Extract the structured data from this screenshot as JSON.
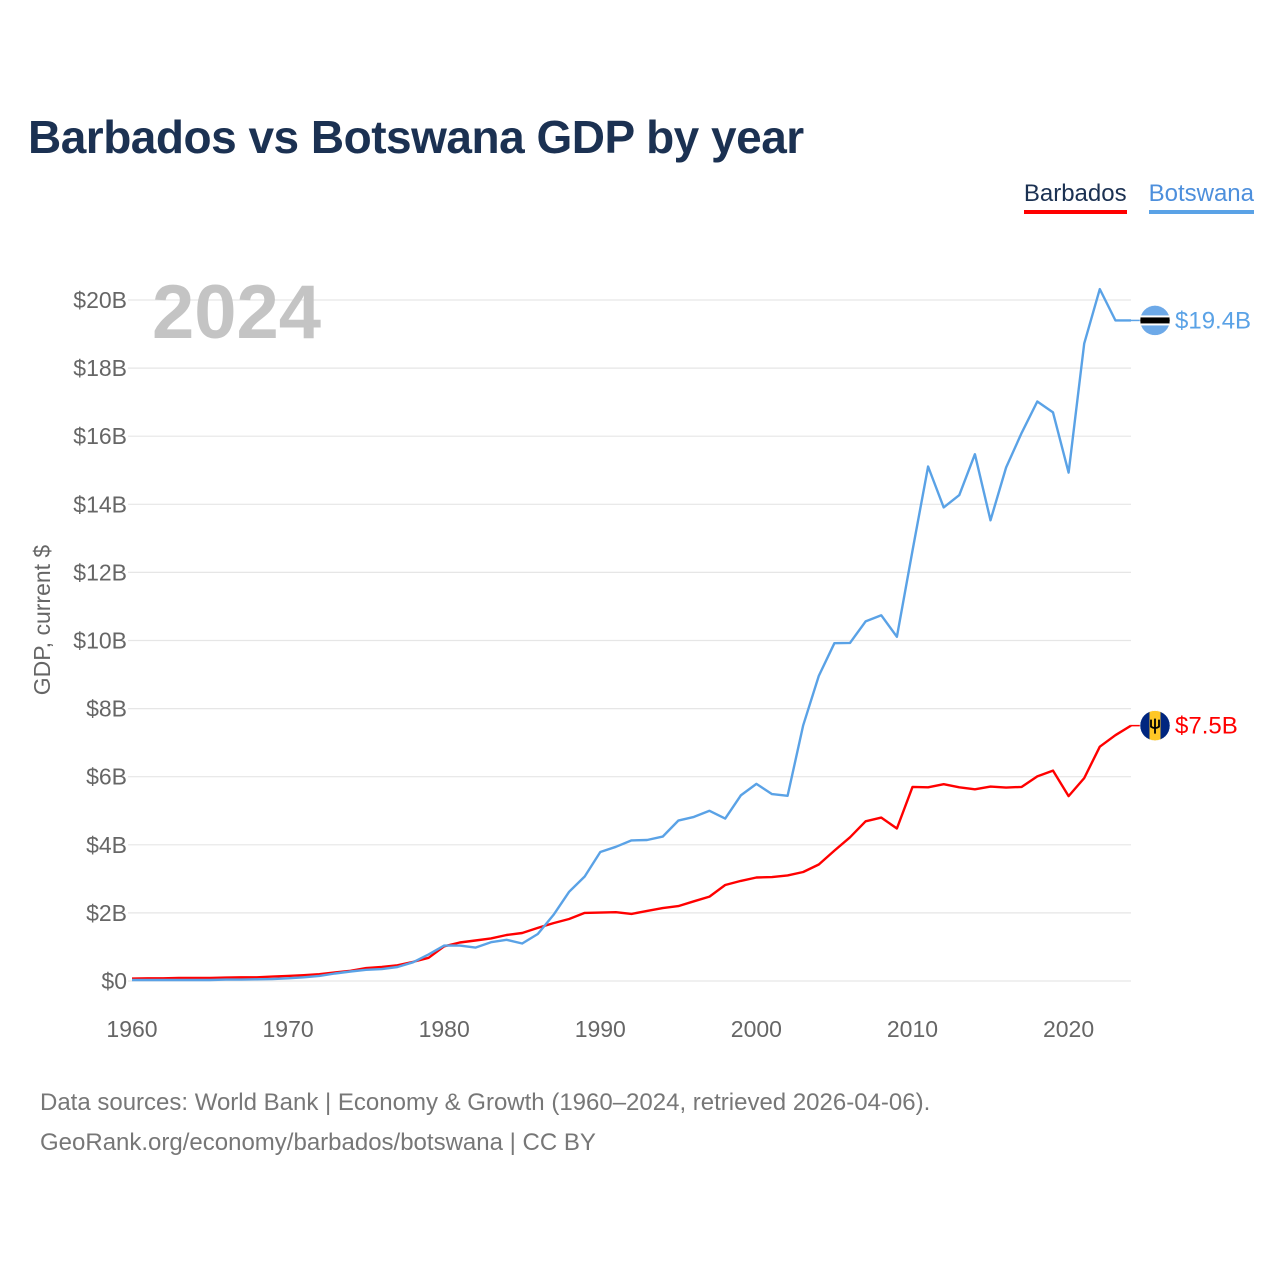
{
  "title": "Barbados vs Botswana GDP by year",
  "legend": {
    "barbados": "Barbados",
    "botswana": "Botswana"
  },
  "year_label": "2024",
  "footer": {
    "line1": "Data sources: World Bank | Economy & Growth (1960–2024, retrieved 2026-04-06).",
    "line2": "GeoRank.org/economy/barbados/botswana | CC BY"
  },
  "colors": {
    "barbados": "#ff0000",
    "botswana": "#5aa2e6",
    "title": "#1b3152",
    "grid": "#e6e6e6",
    "axis_text": "#666666",
    "year_watermark": "#c4c4c4"
  },
  "chart_data": {
    "type": "line",
    "title": "Barbados vs Botswana GDP by year",
    "xlabel": "",
    "ylabel": "GDP, current $",
    "xlim": [
      1960,
      2024
    ],
    "ylim": [
      0,
      20
    ],
    "y_unit": "billions USD",
    "x_ticks": [
      1960,
      1970,
      1980,
      1990,
      2000,
      2010,
      2020
    ],
    "y_ticks": [
      0,
      2,
      4,
      6,
      8,
      10,
      12,
      14,
      16,
      18,
      20
    ],
    "y_tick_labels": [
      "$0",
      "$2B",
      "$4B",
      "$6B",
      "$8B",
      "$10B",
      "$12B",
      "$14B",
      "$16B",
      "$18B",
      "$20B"
    ],
    "grid": true,
    "x": [
      1960,
      1961,
      1962,
      1963,
      1964,
      1965,
      1966,
      1967,
      1968,
      1969,
      1970,
      1971,
      1972,
      1973,
      1974,
      1975,
      1976,
      1977,
      1978,
      1979,
      1980,
      1981,
      1982,
      1983,
      1984,
      1985,
      1986,
      1987,
      1988,
      1989,
      1990,
      1991,
      1992,
      1993,
      1994,
      1995,
      1996,
      1997,
      1998,
      1999,
      2000,
      2001,
      2002,
      2003,
      2004,
      2005,
      2006,
      2007,
      2008,
      2009,
      2010,
      2011,
      2012,
      2013,
      2014,
      2015,
      2016,
      2017,
      2018,
      2019,
      2020,
      2021,
      2022,
      2023,
      2024
    ],
    "series": [
      {
        "name": "Barbados",
        "key": "barbados",
        "end_label": "$7.5B",
        "flag": "barbados-flag",
        "values": [
          0.07,
          0.08,
          0.08,
          0.09,
          0.09,
          0.09,
          0.1,
          0.11,
          0.11,
          0.13,
          0.15,
          0.17,
          0.2,
          0.25,
          0.3,
          0.38,
          0.41,
          0.46,
          0.56,
          0.68,
          1.02,
          1.13,
          1.19,
          1.25,
          1.35,
          1.41,
          1.56,
          1.7,
          1.82,
          2.0,
          2.01,
          2.02,
          1.97,
          2.06,
          2.14,
          2.2,
          2.34,
          2.48,
          2.82,
          2.94,
          3.04,
          3.05,
          3.1,
          3.2,
          3.42,
          3.83,
          4.22,
          4.69,
          4.8,
          4.48,
          5.7,
          5.69,
          5.78,
          5.69,
          5.63,
          5.71,
          5.68,
          5.7,
          6.01,
          6.18,
          5.43,
          5.96,
          6.88,
          7.22,
          7.5
        ]
      },
      {
        "name": "Botswana",
        "key": "botswana",
        "end_label": "$19.4B",
        "flag": "botswana-flag",
        "values": [
          0.03,
          0.03,
          0.03,
          0.03,
          0.03,
          0.03,
          0.04,
          0.04,
          0.05,
          0.06,
          0.08,
          0.11,
          0.15,
          0.22,
          0.28,
          0.33,
          0.35,
          0.41,
          0.55,
          0.78,
          1.04,
          1.04,
          0.98,
          1.14,
          1.21,
          1.1,
          1.38,
          1.94,
          2.62,
          3.07,
          3.79,
          3.94,
          4.13,
          4.14,
          4.24,
          4.71,
          4.82,
          5.0,
          4.77,
          5.45,
          5.79,
          5.49,
          5.44,
          7.51,
          8.96,
          9.92,
          9.93,
          10.56,
          10.74,
          10.11,
          12.64,
          15.11,
          13.91,
          14.27,
          15.47,
          13.53,
          15.08,
          16.1,
          17.02,
          16.7,
          14.93,
          18.72,
          20.32,
          19.4,
          19.4
        ]
      }
    ]
  }
}
